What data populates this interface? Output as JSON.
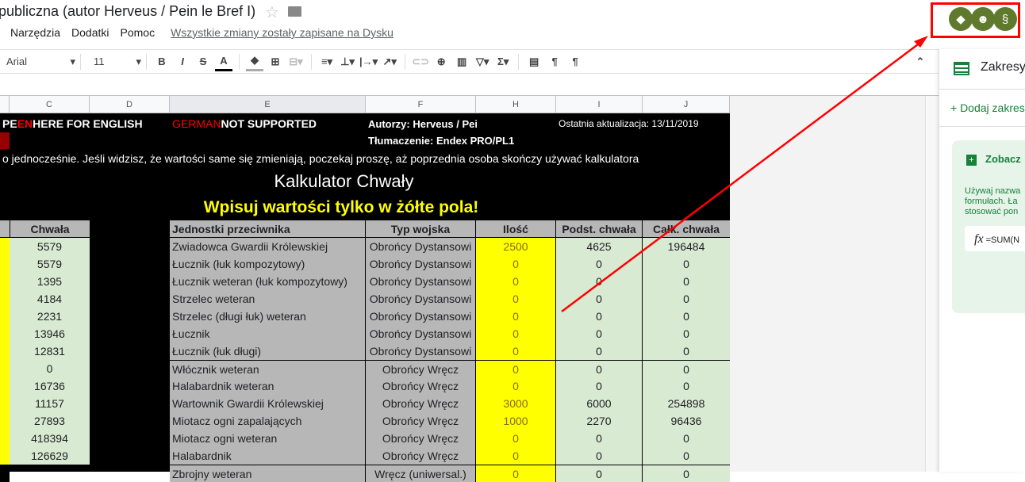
{
  "doc": {
    "title": "publiczna (autor Herveus / Pein le Bref I)",
    "menu": [
      "Narzędzia",
      "Dodatki",
      "Pomoc"
    ],
    "saved": "Wszystkie zmiany zostały zapisane na Dysku"
  },
  "toolbar": {
    "font": "Arial",
    "size": "11"
  },
  "columns": [
    {
      "l": "C",
      "w": 101
    },
    {
      "l": "D",
      "w": 101
    },
    {
      "l": "E",
      "w": 247
    },
    {
      "l": "F",
      "w": 139
    },
    {
      "l": "H",
      "w": 101
    },
    {
      "l": "I",
      "w": 109
    },
    {
      "l": "J",
      "w": 110
    }
  ],
  "banner": {
    "en_pre": "PE ",
    "en": "EN",
    "en_post": " HERE FOR ENGLISH",
    "de": "GERMAN",
    "de_post": " NOT SUPPORTED",
    "authors": "Autorzy: Herveus / Pein le Bref I",
    "updated": "Ostatnia aktualizacja: 13/11/2019",
    "translation": "Tłumaczenie: Endex PRO/PL1",
    "notice": "o jednocześnie. Jeśli widzisz, że wartości same się zmieniają, poczekaj proszę, aż poprzednia osoba skończy używać kalkulatora",
    "title": "Kalkulator Chwały",
    "subtitle": "Wpisuj wartości tylko w żółte pola!"
  },
  "table": {
    "headers": [
      "Chwała",
      "Jednostki przeciwnika",
      "Typ wojska",
      "Ilość",
      "Podst. chwała",
      "Całk. chwała"
    ],
    "rows": [
      [
        "5579",
        "Zwiadowca Gwardii Królewskiej",
        "Obrońcy Dystansowi",
        "2500",
        "4625",
        "196484"
      ],
      [
        "5579",
        "Łucznik (łuk kompozytowy)",
        "Obrońcy Dystansowi",
        "0",
        "0",
        "0"
      ],
      [
        "1395",
        "Łucznik weteran (łuk kompozytowy)",
        "Obrońcy Dystansowi",
        "0",
        "0",
        "0"
      ],
      [
        "4184",
        "Strzelec weteran",
        "Obrońcy Dystansowi",
        "0",
        "0",
        "0"
      ],
      [
        "2231",
        "Strzelec (długi łuk) weteran",
        "Obrońcy Dystansowi",
        "0",
        "0",
        "0"
      ],
      [
        "13946",
        "Łucznik",
        "Obrońcy Dystansowi",
        "0",
        "0",
        "0"
      ],
      [
        "12831",
        "Łucznik (łuk długi)",
        "Obrońcy Dystansowi",
        "0",
        "0",
        "0"
      ],
      [
        "0",
        "Włócznik weteran",
        "Obrońcy Wręcz",
        "0",
        "0",
        "0"
      ],
      [
        "16736",
        "Halabardnik weteran",
        "Obrońcy Wręcz",
        "0",
        "0",
        "0"
      ],
      [
        "11157",
        "Wartownik Gwardii Królewskiej",
        "Obrońcy Wręcz",
        "3000",
        "6000",
        "254898"
      ],
      [
        "27893",
        "Miotacz ogni zapalających",
        "Obrońcy Wręcz",
        "1000",
        "2270",
        "96436"
      ],
      [
        "418394",
        "Miotacz ogni weteran",
        "Obrońcy Wręcz",
        "0",
        "0",
        "0"
      ],
      [
        "126629",
        "Halabardnik",
        "Obrońcy Wręcz",
        "0",
        "0",
        "0"
      ],
      [
        "",
        "Zbrojny weteran",
        "Wręcz (uniwersal.)",
        "0",
        "0",
        "0"
      ]
    ]
  },
  "panel": {
    "title": "Zakresy",
    "add": "+ Dodaj zakres",
    "card_title": "Zobacz",
    "card_desc": "Używaj nazwa\nformułach. Ła\nstosować pon",
    "formula": "=SUM(N"
  },
  "colors": {
    "yellow": "#ffff00",
    "green": "#d9ead3",
    "gray": "#b7b7b7",
    "addon": "#5f7a2c",
    "annotation": "#ff0000"
  }
}
